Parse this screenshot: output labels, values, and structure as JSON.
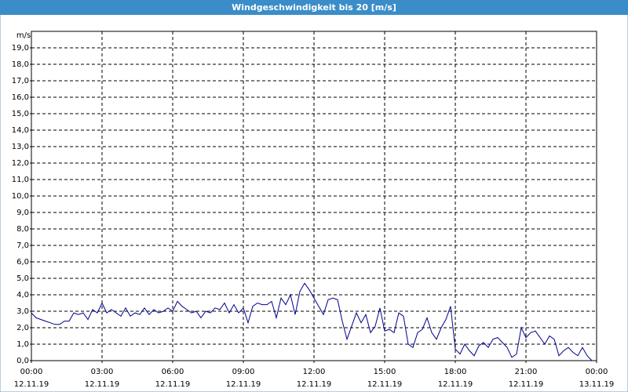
{
  "chart_data": {
    "type": "line",
    "title": "Windgeschwindigkeit bis 20 [m/s]",
    "y_label": "m/s",
    "xlim": [
      0,
      24
    ],
    "xticks": [
      {
        "value": 0,
        "label": "00:00",
        "date": "12.11.19"
      },
      {
        "value": 3,
        "label": "03:00",
        "date": "12.11.19"
      },
      {
        "value": 6,
        "label": "06:00",
        "date": "12.11.19"
      },
      {
        "value": 9,
        "label": "09:00",
        "date": "12.11.19"
      },
      {
        "value": 12,
        "label": "12:00",
        "date": "12.11.19"
      },
      {
        "value": 15,
        "label": "15:00",
        "date": "12.11.19"
      },
      {
        "value": 18,
        "label": "18:00",
        "date": "12.11.19"
      },
      {
        "value": 21,
        "label": "21:00",
        "date": "12.11.19"
      },
      {
        "value": 24,
        "label": "00:00",
        "date": "13.11.19"
      }
    ],
    "ylim": [
      0,
      20
    ],
    "yticks": [
      {
        "value": 0,
        "label": "0,0"
      },
      {
        "value": 1,
        "label": "1,0"
      },
      {
        "value": 2,
        "label": "2,0"
      },
      {
        "value": 3,
        "label": "3,0"
      },
      {
        "value": 4,
        "label": "4,0"
      },
      {
        "value": 5,
        "label": "5,0"
      },
      {
        "value": 6,
        "label": "6,0"
      },
      {
        "value": 7,
        "label": "7,0"
      },
      {
        "value": 8,
        "label": "8,0"
      },
      {
        "value": 9,
        "label": "9,0"
      },
      {
        "value": 10,
        "label": "10,0"
      },
      {
        "value": 11,
        "label": "11,0"
      },
      {
        "value": 12,
        "label": "12,0"
      },
      {
        "value": 13,
        "label": "13,0"
      },
      {
        "value": 14,
        "label": "14,0"
      },
      {
        "value": 15,
        "label": "15,0"
      },
      {
        "value": 16,
        "label": "16,0"
      },
      {
        "value": 17,
        "label": "17,0"
      },
      {
        "value": 18,
        "label": "18,0"
      },
      {
        "value": 19,
        "label": "19,0"
      }
    ],
    "grid": true,
    "color": "#00008b",
    "x": [
      0,
      0.2,
      0.4,
      0.6,
      0.8,
      1,
      1.2,
      1.4,
      1.6,
      1.8,
      2,
      2.2,
      2.4,
      2.6,
      2.8,
      3,
      3.2,
      3.4,
      3.6,
      3.8,
      4,
      4.2,
      4.4,
      4.6,
      4.8,
      5,
      5.2,
      5.4,
      5.6,
      5.8,
      6,
      6.2,
      6.4,
      6.6,
      6.8,
      7,
      7.2,
      7.4,
      7.6,
      7.8,
      8,
      8.2,
      8.4,
      8.6,
      8.8,
      9,
      9.2,
      9.4,
      9.6,
      9.8,
      10,
      10.2,
      10.4,
      10.6,
      10.8,
      11,
      11.2,
      11.4,
      11.6,
      11.8,
      12,
      12.2,
      12.4,
      12.6,
      12.8,
      13,
      13.2,
      13.4,
      13.6,
      13.8,
      14,
      14.2,
      14.4,
      14.6,
      14.8,
      15,
      15.2,
      15.4,
      15.6,
      15.8,
      16,
      16.2,
      16.4,
      16.6,
      16.8,
      17,
      17.2,
      17.4,
      17.6,
      17.8,
      18,
      18.2,
      18.4,
      18.6,
      18.8,
      19,
      19.2,
      19.4,
      19.6,
      19.8,
      20,
      20.2,
      20.4,
      20.6,
      20.8,
      21,
      21.2,
      21.4,
      21.6,
      21.8,
      22,
      22.2,
      22.4,
      22.6,
      22.8,
      23,
      23.2,
      23.4,
      23.6,
      23.8
    ],
    "values": [
      2.9,
      2.6,
      2.5,
      2.4,
      2.3,
      2.2,
      2.2,
      2.4,
      2.4,
      2.9,
      2.8,
      2.9,
      2.5,
      3.1,
      2.9,
      3.5,
      2.9,
      3.1,
      2.9,
      2.7,
      3.2,
      2.7,
      2.9,
      2.8,
      3.2,
      2.8,
      3.1,
      2.9,
      3.0,
      3.2,
      3.0,
      3.6,
      3.3,
      3.1,
      2.9,
      3.0,
      2.6,
      3.0,
      2.9,
      3.2,
      3.1,
      3.5,
      2.9,
      3.4,
      2.9,
      3.2,
      2.3,
      3.3,
      3.5,
      3.4,
      3.4,
      3.6,
      2.6,
      3.8,
      3.4,
      4.0,
      2.8,
      4.2,
      4.7,
      4.3,
      3.8,
      3.3,
      2.8,
      3.7,
      3.8,
      3.7,
      2.4,
      1.3,
      2.1,
      2.9,
      2.3,
      2.8,
      1.7,
      2.1,
      3.2,
      1.8,
      1.9,
      1.7,
      2.9,
      2.7,
      1.0,
      0.8,
      1.7,
      1.9,
      2.6,
      1.7,
      1.3,
      2.0,
      2.5,
      3.3,
      0.7,
      0.4,
      1.0,
      0.6,
      0.3,
      0.9,
      1.1,
      0.8,
      1.3,
      1.4,
      1.1,
      0.8,
      0.2,
      0.4,
      2.0,
      1.4,
      1.7,
      1.8,
      1.4,
      1.0,
      1.5,
      1.3,
      0.3,
      0.6,
      0.8,
      0.5,
      0.3,
      0.8,
      0.3,
      0.0
    ]
  }
}
